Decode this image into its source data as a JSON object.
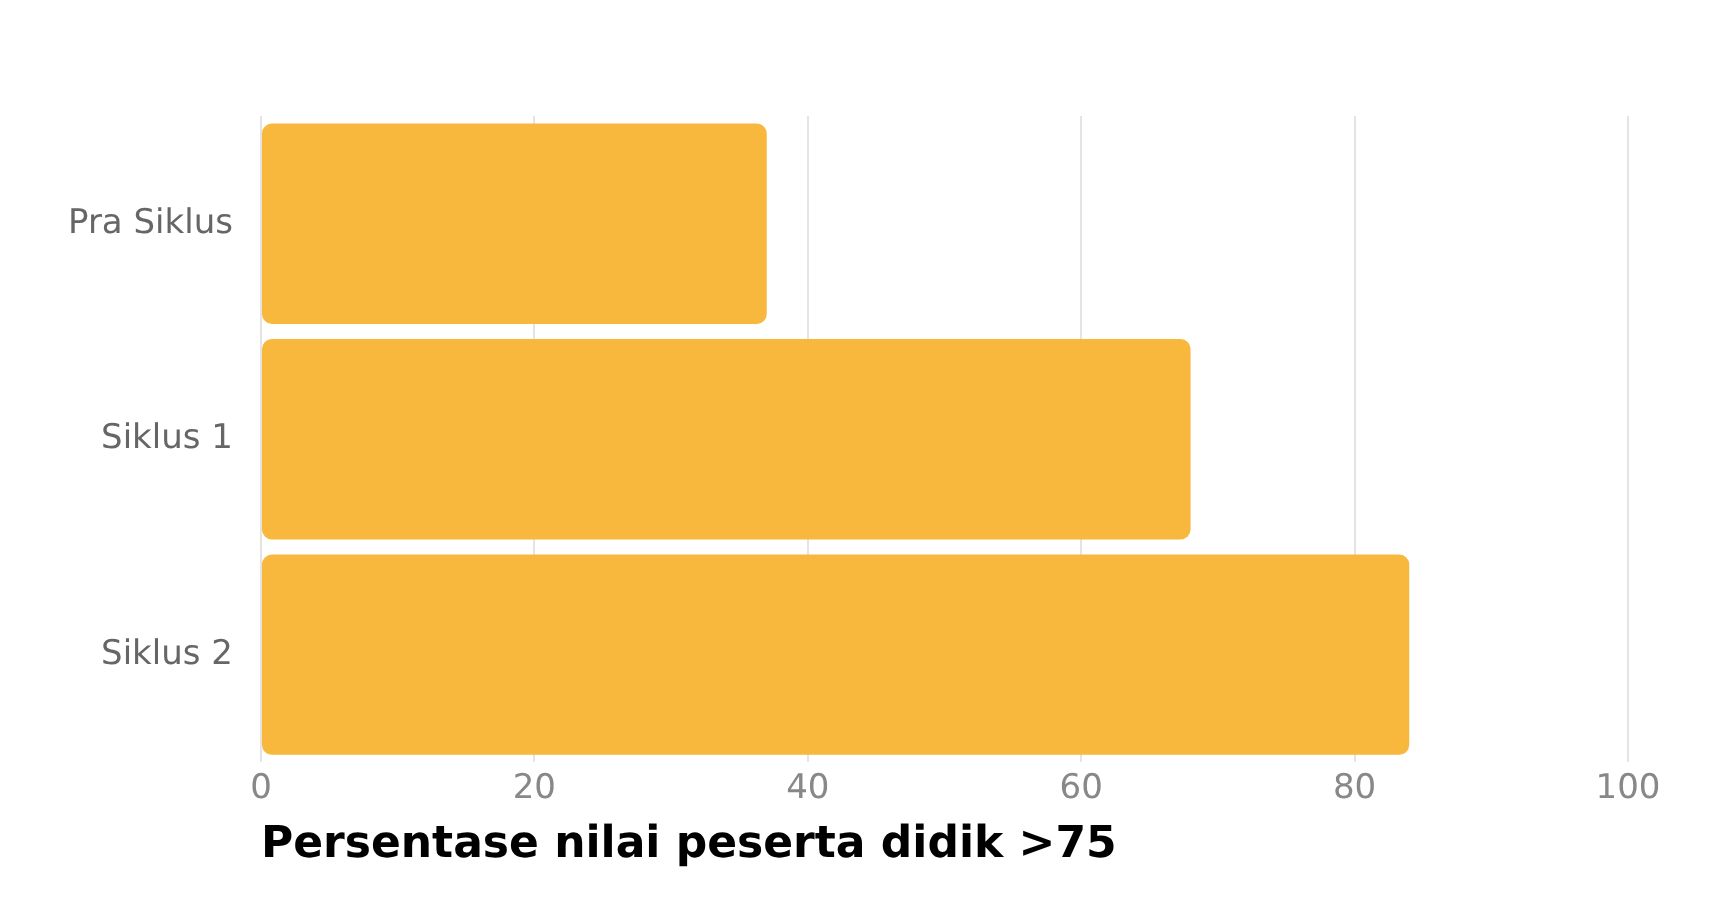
{
  "chart_data": {
    "type": "bar",
    "orientation": "horizontal",
    "xlabel": "Persentase nilai peserta didik >75",
    "categories": [
      "Pra Siklus",
      "Siklus 1",
      "Siklus 2"
    ],
    "values": [
      37,
      68,
      84
    ],
    "color": "#f7b83d",
    "xlim": [
      0,
      100
    ],
    "xticks": [
      0,
      20,
      40,
      60,
      80,
      100
    ],
    "grid": "x",
    "legend": false
  }
}
